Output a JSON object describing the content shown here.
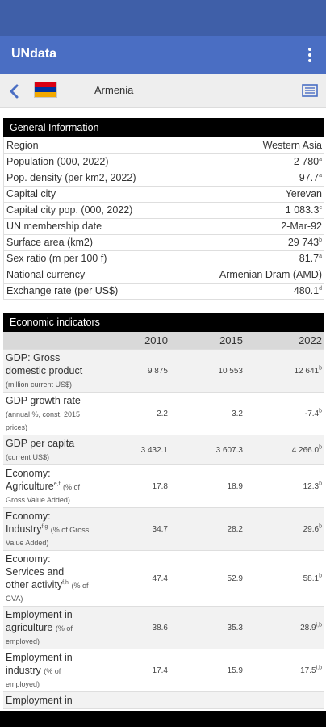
{
  "app": {
    "title": "UNdata"
  },
  "header": {
    "country": "Armenia"
  },
  "colors": {
    "appbar": "#4a6ec3",
    "statusbar": "#3f5fa8",
    "flag_red": "#d90012",
    "flag_blue": "#0033a0",
    "flag_orange": "#f2a800"
  },
  "icons": {
    "back": "back-arrow-icon",
    "menu": "more-vert-icon",
    "doc": "document-icon",
    "flag": "armenia-flag-icon"
  },
  "general": {
    "title": "General Information",
    "rows": [
      {
        "label": "Region",
        "value": "Western Asia",
        "sup": ""
      },
      {
        "label": "Population (000, 2022)",
        "value": "2 780",
        "sup": "a"
      },
      {
        "label": "Pop. density (per km2, 2022)",
        "value": "97.7",
        "sup": "a"
      },
      {
        "label": "Capital city",
        "value": "Yerevan",
        "sup": ""
      },
      {
        "label": "Capital city pop. (000, 2022)",
        "value": "1 083.3",
        "sup": "c"
      },
      {
        "label": "UN membership date",
        "value": "2-Mar-92",
        "sup": ""
      },
      {
        "label": "Surface area (km2)",
        "value": "29 743",
        "sup": "b"
      },
      {
        "label": "Sex ratio (m per 100 f)",
        "value": "81.7",
        "sup": "a"
      },
      {
        "label": "National currency",
        "value": "Armenian Dram (AMD)",
        "sup": ""
      },
      {
        "label": "Exchange rate (per US$)",
        "value": "480.1",
        "sup": "d"
      }
    ]
  },
  "economic": {
    "title": "Economic indicators",
    "years": [
      "2010",
      "2015",
      "2022"
    ],
    "rows": [
      {
        "label": "GDP: Gross domestic product",
        "lsup": "",
        "unit": "(million current US$)",
        "v2010": "9 875",
        "v2015": "10 553",
        "v2022": "12 641",
        "sup": "b"
      },
      {
        "label": "GDP growth rate",
        "lsup": "",
        "unit": "(annual %, const. 2015 prices)",
        "v2010": "2.2",
        "v2015": "3.2",
        "v2022": "-7.4",
        "sup": "b"
      },
      {
        "label": "GDP per capita",
        "lsup": "",
        "unit": "(current US$)",
        "v2010": "3 432.1",
        "v2015": "3 607.3",
        "v2022": "4 266.0",
        "sup": "b"
      },
      {
        "label": "Economy: Agriculture",
        "lsup": "e,f",
        "unit": "(% of Gross Value Added)",
        "v2010": "17.8",
        "v2015": "18.9",
        "v2022": "12.3",
        "sup": "b"
      },
      {
        "label": "Economy: Industry",
        "lsup": "f,g",
        "unit": "(% of Gross Value Added)",
        "v2010": "34.7",
        "v2015": "28.2",
        "v2022": "29.6",
        "sup": "b"
      },
      {
        "label": "Economy: Services and other activity",
        "lsup": "f,h",
        "unit": "(% of GVA)",
        "v2010": "47.4",
        "v2015": "52.9",
        "v2022": "58.1",
        "sup": "b"
      },
      {
        "label": "Employment in agriculture",
        "lsup": "",
        "unit": "(% of employed)",
        "v2010": "38.6",
        "v2015": "35.3",
        "v2022": "28.9",
        "sup": "i,b"
      },
      {
        "label": "Employment in industry",
        "lsup": "",
        "unit": "(% of employed)",
        "v2010": "17.4",
        "v2015": "15.9",
        "v2022": "17.5",
        "sup": "i,b"
      },
      {
        "label": "Employment in",
        "lsup": "",
        "unit": "",
        "v2010": "",
        "v2015": "",
        "v2022": "",
        "sup": ""
      }
    ]
  }
}
